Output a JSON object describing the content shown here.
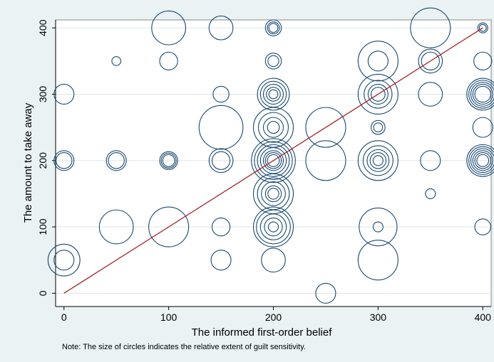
{
  "chart_data": {
    "type": "scatter",
    "xlabel": "The informed first-order belief",
    "ylabel": "The amount to take away",
    "note": "Note: The size of circles indicates the relative extent of guilt sensitivity.",
    "xlim": [
      -8,
      408
    ],
    "ylim": [
      -20,
      412
    ],
    "x_ticks": [
      0,
      100,
      200,
      300,
      400
    ],
    "y_ticks": [
      0,
      100,
      200,
      300,
      400
    ],
    "grid": "horizontal",
    "colors": {
      "background": "#eaf2f3",
      "plot_bg": "#ffffff",
      "circle": "#1a4a73",
      "line": "#a02828",
      "grid": "#dfe6ea"
    },
    "reference_line": {
      "from": [
        0,
        0
      ],
      "to": [
        400,
        400
      ]
    },
    "point_groups": [
      {
        "x": 0,
        "y": 300,
        "sizes": [
          1.0
        ]
      },
      {
        "x": 0,
        "y": 200,
        "sizes": [
          1.0,
          0.8
        ]
      },
      {
        "x": 0,
        "y": 50,
        "sizes": [
          1.6,
          1.0
        ]
      },
      {
        "x": 50,
        "y": 350,
        "sizes": [
          0.45
        ]
      },
      {
        "x": 50,
        "y": 200,
        "sizes": [
          1.0,
          0.8
        ]
      },
      {
        "x": 50,
        "y": 100,
        "sizes": [
          1.7
        ]
      },
      {
        "x": 100,
        "y": 400,
        "sizes": [
          1.7
        ]
      },
      {
        "x": 100,
        "y": 350,
        "sizes": [
          0.9
        ]
      },
      {
        "x": 100,
        "y": 200,
        "sizes": [
          0.9,
          0.75,
          0.6
        ]
      },
      {
        "x": 100,
        "y": 100,
        "sizes": [
          2.0
        ]
      },
      {
        "x": 150,
        "y": 400,
        "sizes": [
          1.2
        ]
      },
      {
        "x": 150,
        "y": 300,
        "sizes": [
          0.8
        ]
      },
      {
        "x": 150,
        "y": 250,
        "sizes": [
          2.2
        ]
      },
      {
        "x": 150,
        "y": 200,
        "sizes": [
          1.2,
          0.9
        ]
      },
      {
        "x": 150,
        "y": 100,
        "sizes": [
          0.9
        ]
      },
      {
        "x": 150,
        "y": 50,
        "sizes": [
          1.0
        ]
      },
      {
        "x": 200,
        "y": 400,
        "sizes": [
          0.8,
          0.6,
          0.45
        ]
      },
      {
        "x": 200,
        "y": 350,
        "sizes": [
          0.8,
          0.55
        ]
      },
      {
        "x": 200,
        "y": 300,
        "sizes": [
          1.6,
          1.3,
          1.0,
          0.7,
          0.45
        ]
      },
      {
        "x": 200,
        "y": 250,
        "sizes": [
          2.0,
          1.5,
          1.0,
          0.6
        ]
      },
      {
        "x": 200,
        "y": 200,
        "sizes": [
          2.2,
          1.9,
          1.6,
          1.3,
          1.0,
          0.8,
          0.6
        ]
      },
      {
        "x": 200,
        "y": 150,
        "sizes": [
          2.0,
          1.6,
          1.2,
          0.8,
          0.55
        ]
      },
      {
        "x": 200,
        "y": 100,
        "sizes": [
          2.0,
          1.7,
          1.3,
          0.9,
          0.5
        ]
      },
      {
        "x": 200,
        "y": 50,
        "sizes": [
          1.2
        ]
      },
      {
        "x": 250,
        "y": 250,
        "sizes": [
          2.0
        ]
      },
      {
        "x": 250,
        "y": 200,
        "sizes": [
          2.0
        ]
      },
      {
        "x": 250,
        "y": 0,
        "sizes": [
          1.0
        ]
      },
      {
        "x": 300,
        "y": 350,
        "sizes": [
          2.0,
          1.0
        ]
      },
      {
        "x": 300,
        "y": 300,
        "sizes": [
          2.0,
          1.4,
          1.0,
          0.7
        ]
      },
      {
        "x": 300,
        "y": 250,
        "sizes": [
          0.7,
          0.45
        ]
      },
      {
        "x": 300,
        "y": 200,
        "sizes": [
          2.0,
          1.5,
          1.1,
          0.8,
          0.5
        ]
      },
      {
        "x": 300,
        "y": 100,
        "sizes": [
          1.9,
          0.5
        ]
      },
      {
        "x": 300,
        "y": 50,
        "sizes": [
          2.0
        ]
      },
      {
        "x": 350,
        "y": 400,
        "sizes": [
          2.0
        ]
      },
      {
        "x": 350,
        "y": 350,
        "sizes": [
          1.2,
          0.9
        ]
      },
      {
        "x": 350,
        "y": 300,
        "sizes": [
          1.2
        ]
      },
      {
        "x": 350,
        "y": 200,
        "sizes": [
          1.0
        ]
      },
      {
        "x": 350,
        "y": 150,
        "sizes": [
          0.5
        ]
      },
      {
        "x": 400,
        "y": 400,
        "sizes": [
          0.5,
          0.35
        ]
      },
      {
        "x": 400,
        "y": 350,
        "sizes": [
          0.9
        ]
      },
      {
        "x": 400,
        "y": 300,
        "sizes": [
          1.6,
          1.4,
          1.2,
          1.0,
          0.8
        ]
      },
      {
        "x": 400,
        "y": 250,
        "sizes": [
          1.0
        ]
      },
      {
        "x": 400,
        "y": 200,
        "sizes": [
          1.6,
          1.4,
          1.2,
          1.0,
          0.8,
          0.6
        ]
      },
      {
        "x": 400,
        "y": 100,
        "sizes": [
          0.8
        ]
      }
    ]
  }
}
